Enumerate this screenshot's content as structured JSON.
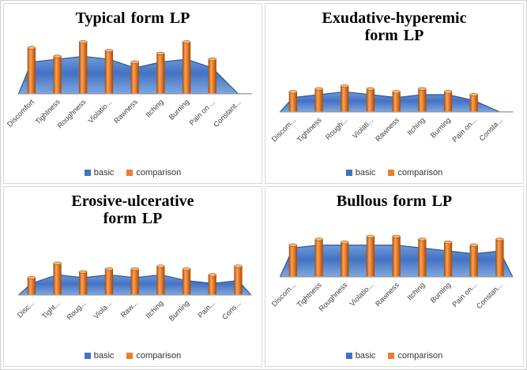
{
  "colors": {
    "basic": "#4472C4",
    "basic_edge": "#2E5597",
    "comparison": "#ED7D31",
    "comparison_edge": "#9C4E0B",
    "comparison_top": "#F9B97F",
    "axis_line": "#ADADAD",
    "label_text": "#404040"
  },
  "chart_data": [
    {
      "type": "area+bar combo",
      "title": "Typical form LP",
      "title_lines": [
        "Typical form LP"
      ],
      "categories": [
        "Discomfort",
        "Tightness",
        "Roughness",
        "Violatio...",
        "Rawness",
        "Itching",
        "Burning",
        "Pain on ...",
        "Constant..."
      ],
      "series": [
        {
          "name": "basic",
          "chart": "area",
          "values": [
            5.5,
            6,
            6.5,
            6,
            4.5,
            5.5,
            6,
            4.5,
            0
          ]
        },
        {
          "name": "comparison",
          "chart": "bar",
          "values": [
            8,
            6.5,
            9,
            7.5,
            5.5,
            7,
            9,
            6,
            0
          ]
        }
      ],
      "ylim": [
        0,
        10
      ],
      "grid": false,
      "legend_position": "bottom"
    },
    {
      "type": "area+bar combo",
      "title": "Exudative-hyperemic form LP",
      "title_lines": [
        "Exudative-hyperemic",
        "form LP"
      ],
      "categories": [
        "Discom...",
        "Tightness",
        "Rough...",
        "Violati...",
        "Rawness",
        "Itching",
        "Burning",
        "Pain on...",
        "Consta..."
      ],
      "series": [
        {
          "name": "basic",
          "chart": "area",
          "values": [
            2.5,
            3,
            3.5,
            3,
            2.5,
            3,
            3,
            2,
            0
          ]
        },
        {
          "name": "comparison",
          "chart": "bar",
          "values": [
            3.5,
            4,
            4.5,
            4,
            3.5,
            4,
            3.5,
            3,
            0
          ]
        }
      ],
      "ylim": [
        0,
        10
      ],
      "grid": false,
      "legend_position": "bottom"
    },
    {
      "type": "area+bar combo",
      "title": "Erosive-ulcerative form LP",
      "title_lines": [
        "Erosive-ulcerative",
        "form LP"
      ],
      "categories": [
        "Disc...",
        "Tight...",
        "Roug...",
        "Viola...",
        "Raw...",
        "Itching",
        "Burning",
        "Pain...",
        "Cons..."
      ],
      "series": [
        {
          "name": "basic",
          "chart": "area",
          "values": [
            2,
            3.5,
            3,
            3.5,
            3,
            3.5,
            2.5,
            2,
            2.5
          ]
        },
        {
          "name": "comparison",
          "chart": "bar",
          "values": [
            3,
            5.5,
            4,
            4.5,
            4.5,
            5,
            4.5,
            3.5,
            5
          ]
        }
      ],
      "ylim": [
        0,
        10
      ],
      "grid": false,
      "legend_position": "bottom"
    },
    {
      "type": "area+bar combo",
      "title": "Bullous form LP",
      "title_lines": [
        "Bullous form LP"
      ],
      "categories": [
        "Discom...",
        "Tightness",
        "Roughness",
        "Violatio...",
        "Rawness",
        "Itching",
        "Burning",
        "Pain on...",
        "Constan..."
      ],
      "series": [
        {
          "name": "basic",
          "chart": "area",
          "values": [
            5,
            5.5,
            5.5,
            5.5,
            5.5,
            5,
            4.5,
            4,
            4.5
          ]
        },
        {
          "name": "comparison",
          "chart": "bar",
          "values": [
            5.5,
            6.5,
            6,
            7,
            7,
            6.5,
            6,
            5.5,
            6.5
          ]
        }
      ],
      "ylim": [
        0,
        10
      ],
      "grid": false,
      "legend_position": "bottom"
    }
  ]
}
